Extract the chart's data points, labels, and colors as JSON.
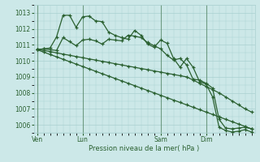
{
  "xlabel": "Pression niveau de la mer( hPa )",
  "ylim": [
    1005.5,
    1013.5
  ],
  "bg_color": "#cce8e8",
  "grid_color": "#aad0d0",
  "line_color": "#2a6030",
  "tick_label_color": "#2a6030",
  "day_labels": [
    "Ven",
    "Lun",
    "Sam",
    "Dim"
  ],
  "day_positions": [
    0,
    7,
    19,
    26
  ],
  "n_points": 34,
  "series1": [
    1010.7,
    1010.75,
    1010.8,
    1011.5,
    1012.85,
    1012.85,
    1012.1,
    1012.75,
    1012.8,
    1012.5,
    1012.45,
    1011.8,
    1011.6,
    1011.45,
    1011.35,
    1011.9,
    1011.6,
    1011.05,
    1010.85,
    1011.3,
    1011.1,
    1010.15,
    1009.6,
    1010.15,
    1009.6,
    1008.7,
    1008.55,
    1007.75,
    1005.85,
    1005.65,
    1005.55,
    1005.6,
    1005.7,
    1005.55
  ],
  "series2": [
    1010.7,
    1010.75,
    1010.7,
    1010.65,
    1011.45,
    1011.2,
    1010.95,
    1011.3,
    1011.35,
    1011.25,
    1011.05,
    1011.35,
    1011.3,
    1011.25,
    1011.6,
    1011.55,
    1011.45,
    1011.15,
    1010.95,
    1010.75,
    1010.35,
    1010.05,
    1010.15,
    1009.75,
    1008.85,
    1008.8,
    1008.6,
    1008.3,
    1006.35,
    1005.8,
    1005.75,
    1005.8,
    1005.85,
    1005.75
  ],
  "series3": [
    1010.7,
    1010.65,
    1010.58,
    1010.5,
    1010.42,
    1010.35,
    1010.27,
    1010.2,
    1010.12,
    1010.05,
    1009.97,
    1009.9,
    1009.82,
    1009.75,
    1009.67,
    1009.6,
    1009.52,
    1009.45,
    1009.37,
    1009.3,
    1009.22,
    1009.15,
    1009.07,
    1009.0,
    1008.8,
    1008.6,
    1008.4,
    1008.2,
    1008.0,
    1007.75,
    1007.5,
    1007.25,
    1007.0,
    1006.8
  ],
  "series4": [
    1010.7,
    1010.55,
    1010.4,
    1010.25,
    1010.1,
    1009.95,
    1009.8,
    1009.65,
    1009.5,
    1009.35,
    1009.2,
    1009.05,
    1008.9,
    1008.75,
    1008.6,
    1008.45,
    1008.3,
    1008.15,
    1008.0,
    1007.85,
    1007.7,
    1007.55,
    1007.4,
    1007.25,
    1007.1,
    1006.95,
    1006.8,
    1006.65,
    1006.5,
    1006.35,
    1006.2,
    1006.05,
    1005.9,
    1005.75
  ]
}
